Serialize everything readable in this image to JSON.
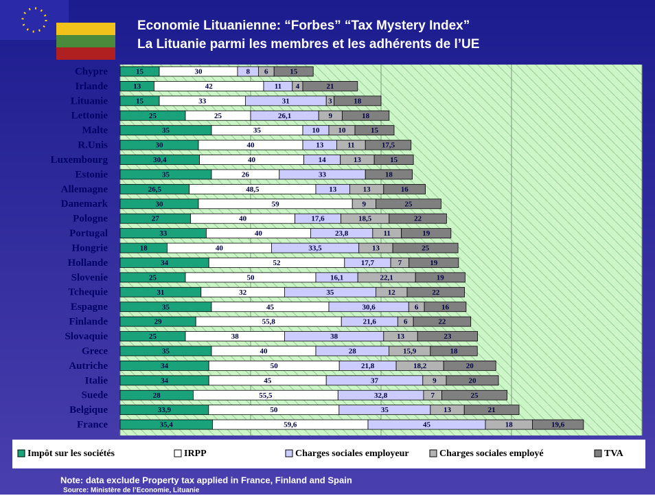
{
  "chart_data": {
    "type": "stacked-bar-horizontal",
    "title": "Economie Lituanienne: “Forbes” “Tax Mystery Index”",
    "subtitle": "La Lituanie parmi les membres et les adhérents de l’UE",
    "note": "Note: data exclude Property tax applied in France, Finland and Spain",
    "source": "Source: Ministère de l’Economie, Lituanie",
    "categories": [
      "Chypre",
      "Irlande",
      "Lituanie",
      "Lettonie",
      "Malte",
      "R.Unis",
      "Luxembourg",
      "Estonie",
      "Allemagne",
      "Danemark",
      "Pologne",
      "Portugal",
      "Hongrie",
      "Hollande",
      "Slovenie",
      "Tchequie",
      "Espagne",
      "Finlande",
      "Slovaquie",
      "Grece",
      "Autriche",
      "Italie",
      "Suede",
      "Belgique",
      "France"
    ],
    "xlim": [
      0,
      200
    ],
    "xticks": [
      0,
      50,
      100,
      150,
      200
    ],
    "grid": true,
    "legend": "bottom",
    "series": [
      {
        "name": "Impôt sur les sociétés",
        "color": "#1aa37a",
        "values": [
          15,
          13,
          15,
          25,
          35,
          30,
          30.4,
          35,
          26.5,
          30,
          27,
          33,
          18,
          34,
          25,
          31,
          35,
          29,
          25,
          35,
          34,
          34,
          28,
          33.9,
          35.4
        ],
        "value_labels": [
          "15",
          "13",
          "15",
          "25",
          "35",
          "30",
          "30,4",
          "35",
          "26,5",
          "30",
          "27",
          "33",
          "18",
          "34",
          "25",
          "31",
          "35",
          "29",
          "25",
          "35",
          "34",
          "34",
          "28",
          "33,9",
          "35,4"
        ]
      },
      {
        "name": "IRPP",
        "color": "#ffffff",
        "values": [
          30,
          42,
          33,
          25,
          35,
          40,
          40,
          26,
          48.5,
          59,
          40,
          40,
          40,
          52,
          50,
          32,
          45,
          55.8,
          38,
          40,
          50,
          45,
          55.5,
          50,
          59.6
        ],
        "value_labels": [
          "30",
          "42",
          "33",
          "25",
          "35",
          "40",
          "40",
          "26",
          "48,5",
          "59",
          "40",
          "40",
          "40",
          "52",
          "50",
          "32",
          "45",
          "55,8",
          "38",
          "40",
          "50",
          "45",
          "55,5",
          "50",
          "59,6"
        ]
      },
      {
        "name": "Charges sociales employeur",
        "color": "#ccccff",
        "values": [
          8,
          11,
          31,
          26.1,
          10,
          13,
          14,
          33,
          13,
          null,
          17.6,
          23.8,
          33.5,
          17.7,
          16.1,
          35,
          30.6,
          21.6,
          38,
          28,
          21.8,
          37,
          32.8,
          35,
          45
        ],
        "value_labels": [
          "8",
          "11",
          "31",
          "26,1",
          "10",
          "13",
          "14",
          "33",
          "13",
          null,
          "17,6",
          "23,8",
          "33,5",
          "17,7",
          "16,1",
          "35",
          "30,6",
          "21,6",
          "38",
          "28",
          "21,8",
          "37",
          "32,8",
          "35",
          "45"
        ]
      },
      {
        "name": "Charges sociales employé",
        "color": "#b3b3b3",
        "values": [
          6,
          4,
          3,
          9,
          10,
          11,
          13,
          null,
          13,
          9,
          18.5,
          11,
          13,
          7,
          22.1,
          12,
          6,
          6,
          13,
          15.9,
          18.2,
          9,
          7,
          13,
          18
        ],
        "value_labels": [
          "6",
          "4",
          "3",
          "9",
          "10",
          "11",
          "13",
          null,
          "13",
          "9",
          "18,5",
          "11",
          "13",
          "7",
          "22,1",
          "12",
          "6",
          "6",
          "13",
          "15,9",
          "18,2",
          "9",
          "7",
          "13",
          "18"
        ]
      },
      {
        "name": "TVA",
        "color": "#808080",
        "values": [
          15,
          21,
          18,
          18,
          15,
          17.5,
          15,
          18,
          16,
          25,
          22,
          19,
          25,
          19,
          19,
          22,
          16,
          22,
          23,
          18,
          20,
          20,
          25,
          21,
          19.6
        ],
        "value_labels": [
          "15",
          "21",
          "18",
          "18",
          "15",
          "17,5",
          "15",
          "18",
          "16",
          "25",
          "22",
          "19",
          "25",
          "19",
          "19",
          "22",
          "16",
          "22",
          "23",
          "18",
          "20",
          "20",
          "25",
          "21",
          "19,6"
        ]
      }
    ]
  }
}
